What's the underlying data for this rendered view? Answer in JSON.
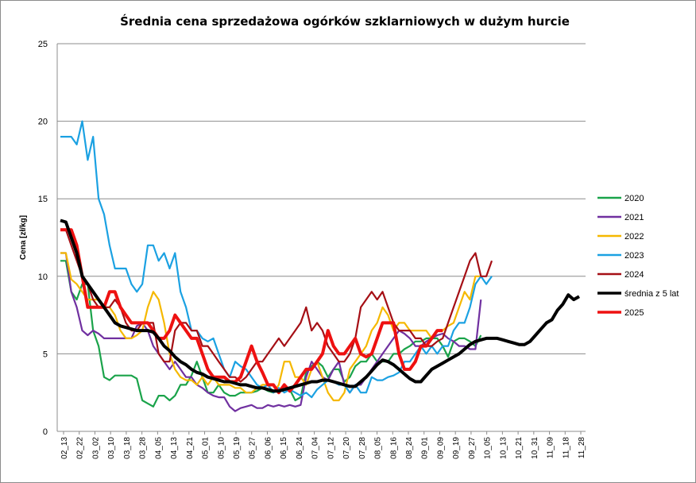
{
  "chart_data": {
    "type": "line",
    "title": "Średnia cena sprzedażowa ogórków szklarniowych w dużym hurcie",
    "xlabel": "",
    "ylabel": "Cena [zł/kg]",
    "ylim": [
      0,
      25
    ],
    "yticks": [
      0,
      5,
      10,
      15,
      20,
      25
    ],
    "grid": true,
    "legend_position": "right",
    "x_tick_labels": [
      "02_13",
      "02_22",
      "03_02",
      "03_10",
      "03_18",
      "03_28",
      "04_05",
      "04_13",
      "04_21",
      "05_01",
      "05_10",
      "05_19",
      "05_27",
      "06_06",
      "06_15",
      "06_24",
      "07_04",
      "07_12",
      "07_20",
      "07_28",
      "08_05",
      "08_16",
      "08_24",
      "09_01",
      "09_09",
      "09_19",
      "09_27",
      "10_05",
      "10_13",
      "10_21",
      "10_31",
      "11_09",
      "11_18",
      "11_28"
    ],
    "series": [
      {
        "name": "2020",
        "color": "#1aa34a",
        "width": 2.2,
        "values": [
          11.0,
          11.0,
          9.0,
          8.5,
          9.5,
          9.5,
          6.5,
          5.5,
          3.5,
          3.3,
          3.6,
          3.6,
          3.6,
          3.6,
          3.4,
          2.0,
          1.8,
          1.6,
          2.3,
          2.3,
          2.0,
          2.3,
          3.0,
          3.0,
          3.6,
          4.5,
          3.5,
          2.5,
          2.5,
          3.0,
          2.5,
          2.3,
          2.3,
          2.5,
          2.5,
          2.5,
          2.6,
          2.8,
          2.6,
          2.5,
          2.7,
          2.7,
          2.7,
          2.0,
          2.2,
          3.8,
          4.2,
          4.5,
          4.2,
          3.5,
          4.0,
          4.0,
          3.2,
          3.5,
          4.2,
          4.5,
          4.5,
          5.0,
          4.5,
          4.5,
          4.5,
          5.0,
          5.0,
          5.3,
          5.5,
          5.8,
          5.8,
          6.0,
          6.0,
          6.0,
          5.5,
          4.8,
          5.8,
          6.0,
          6.0,
          5.8,
          5.5,
          6.2
        ]
      },
      {
        "name": "2021",
        "color": "#7030a0",
        "width": 2.2,
        "values": [
          11.5,
          11.5,
          9.0,
          8.0,
          6.5,
          6.2,
          6.5,
          6.3,
          6.0,
          6.0,
          6.0,
          6.0,
          6.0,
          6.0,
          6.8,
          7.0,
          6.5,
          5.5,
          5.0,
          4.5,
          4.0,
          4.5,
          4.0,
          3.5,
          3.5,
          3.0,
          2.8,
          2.5,
          2.3,
          2.2,
          2.2,
          1.6,
          1.3,
          1.5,
          1.6,
          1.7,
          1.5,
          1.5,
          1.7,
          1.6,
          1.7,
          1.6,
          1.7,
          1.6,
          1.7,
          3.5,
          4.5,
          4.0,
          3.5,
          3.3,
          4.0,
          4.5,
          3.0,
          2.5,
          3.0,
          3.0,
          3.5,
          4.0,
          4.5,
          5.0,
          5.5,
          6.0,
          6.5,
          6.3,
          6.0,
          5.5,
          5.5,
          5.8,
          6.0,
          6.2,
          6.3,
          6.0,
          5.8,
          5.5,
          5.5,
          5.3,
          5.3,
          8.5
        ]
      },
      {
        "name": "2022",
        "color": "#f5b800",
        "width": 2.2,
        "values": [
          11.5,
          11.5,
          9.8,
          9.5,
          9.0,
          8.5,
          8.5,
          8.5,
          8.0,
          8.0,
          7.5,
          6.5,
          6.0,
          6.0,
          6.2,
          6.5,
          8.0,
          9.0,
          8.5,
          7.0,
          5.0,
          4.0,
          3.5,
          3.3,
          3.3,
          3.0,
          3.5,
          3.0,
          3.5,
          3.0,
          3.0,
          3.0,
          2.8,
          2.8,
          2.5,
          2.5,
          2.8,
          3.0,
          3.0,
          2.5,
          3.0,
          4.5,
          4.5,
          3.5,
          3.5,
          3.0,
          4.0,
          4.5,
          3.5,
          2.5,
          2.0,
          2.0,
          2.5,
          4.0,
          4.5,
          5.0,
          5.5,
          6.5,
          7.0,
          8.0,
          7.5,
          6.5,
          7.0,
          7.0,
          6.5,
          6.5,
          6.5,
          6.5,
          6.0,
          6.5,
          6.5,
          6.8,
          7.0,
          8.0,
          9.0,
          8.5,
          10.0,
          10.0
        ]
      },
      {
        "name": "2023",
        "color": "#1ba1e2",
        "width": 2.2,
        "values": [
          19.0,
          19.0,
          19.0,
          18.5,
          20.0,
          17.5,
          19.0,
          15.0,
          14.0,
          12.0,
          10.5,
          10.5,
          10.5,
          9.5,
          9.0,
          9.5,
          12.0,
          12.0,
          11.0,
          11.5,
          10.5,
          11.5,
          9.0,
          8.0,
          6.5,
          6.5,
          6.0,
          5.8,
          6.0,
          5.0,
          4.0,
          3.5,
          4.5,
          4.2,
          4.0,
          3.5,
          3.0,
          2.8,
          3.0,
          2.5,
          2.8,
          2.5,
          2.7,
          2.5,
          2.3,
          2.5,
          2.2,
          2.7,
          3.0,
          3.3,
          3.2,
          3.0,
          3.0,
          2.5,
          3.0,
          2.5,
          2.5,
          3.5,
          3.3,
          3.3,
          3.5,
          3.6,
          3.8,
          4.5,
          4.5,
          5.0,
          5.5,
          5.0,
          5.5,
          5.0,
          5.5,
          5.5,
          6.5,
          7.0,
          7.0,
          8.0,
          9.5,
          10.0,
          9.5,
          10.0
        ]
      },
      {
        "name": "2024",
        "color": "#a50f15",
        "width": 2.2,
        "values": [
          13.0,
          13.0,
          12.0,
          11.0,
          10.0,
          9.5,
          8.5,
          8.0,
          8.0,
          8.0,
          8.5,
          8.0,
          7.0,
          6.5,
          6.5,
          7.0,
          7.0,
          7.0,
          5.0,
          4.5,
          4.5,
          6.5,
          7.0,
          7.0,
          6.5,
          6.5,
          5.5,
          5.5,
          5.0,
          4.5,
          4.0,
          3.5,
          3.5,
          3.2,
          3.5,
          4.0,
          4.5,
          4.5,
          5.0,
          5.5,
          6.0,
          5.5,
          6.0,
          6.5,
          7.0,
          8.0,
          6.5,
          7.0,
          6.5,
          5.5,
          5.0,
          4.5,
          4.5,
          5.0,
          6.0,
          8.0,
          8.5,
          9.0,
          8.5,
          9.0,
          8.0,
          7.0,
          6.5,
          6.5,
          6.5,
          6.0,
          6.0,
          5.5,
          5.5,
          5.8,
          6.0,
          7.0,
          8.0,
          9.0,
          10.0,
          11.0,
          11.5,
          10.0,
          10.0,
          11.0
        ]
      },
      {
        "name": "średnia z 5 lat",
        "color": "#000000",
        "width": 4.0,
        "values": [
          13.6,
          13.5,
          12.5,
          11.5,
          10.0,
          9.5,
          9.0,
          8.5,
          8.0,
          7.5,
          7.0,
          6.8,
          6.7,
          6.6,
          6.5,
          6.5,
          6.5,
          6.4,
          6.0,
          5.5,
          5.2,
          4.8,
          4.5,
          4.3,
          4.0,
          3.8,
          3.7,
          3.5,
          3.4,
          3.3,
          3.2,
          3.2,
          3.1,
          3.0,
          3.0,
          2.9,
          2.8,
          2.8,
          2.7,
          2.6,
          2.6,
          2.7,
          2.8,
          2.9,
          3.0,
          3.1,
          3.2,
          3.2,
          3.3,
          3.3,
          3.2,
          3.1,
          3.0,
          2.9,
          2.9,
          3.2,
          3.5,
          3.9,
          4.3,
          4.6,
          4.5,
          4.3,
          4.0,
          3.7,
          3.4,
          3.2,
          3.2,
          3.6,
          4.0,
          4.2,
          4.4,
          4.6,
          4.8,
          5.0,
          5.3,
          5.6,
          5.8,
          5.9,
          6.0,
          6.0,
          6.0,
          5.9,
          5.8,
          5.7,
          5.6,
          5.6,
          5.8,
          6.2,
          6.6,
          7.0,
          7.2,
          7.8,
          8.2,
          8.8,
          8.5,
          8.7
        ]
      },
      {
        "name": "2025",
        "color": "#ee1111",
        "width": 4.0,
        "values": [
          13.0,
          13.0,
          13.0,
          12.0,
          10.0,
          8.0,
          8.0,
          8.0,
          8.0,
          9.0,
          9.0,
          8.0,
          7.5,
          7.0,
          7.0,
          7.0,
          7.0,
          6.5,
          6.0,
          6.0,
          6.5,
          7.5,
          7.0,
          6.5,
          6.0,
          6.0,
          5.0,
          4.0,
          3.5,
          3.5,
          3.5,
          3.2,
          3.2,
          3.5,
          4.5,
          5.5,
          4.5,
          3.8,
          3.0,
          3.0,
          2.5,
          3.0,
          2.6,
          3.0,
          3.5,
          4.0,
          4.0,
          4.5,
          5.0,
          6.5,
          5.5,
          5.0,
          5.0,
          5.5,
          6.0,
          5.0,
          4.8,
          5.0,
          6.0,
          7.0,
          7.0,
          7.0,
          5.0,
          4.0,
          4.0,
          4.5,
          5.5,
          5.5,
          6.0,
          6.5,
          6.5
        ]
      }
    ]
  }
}
